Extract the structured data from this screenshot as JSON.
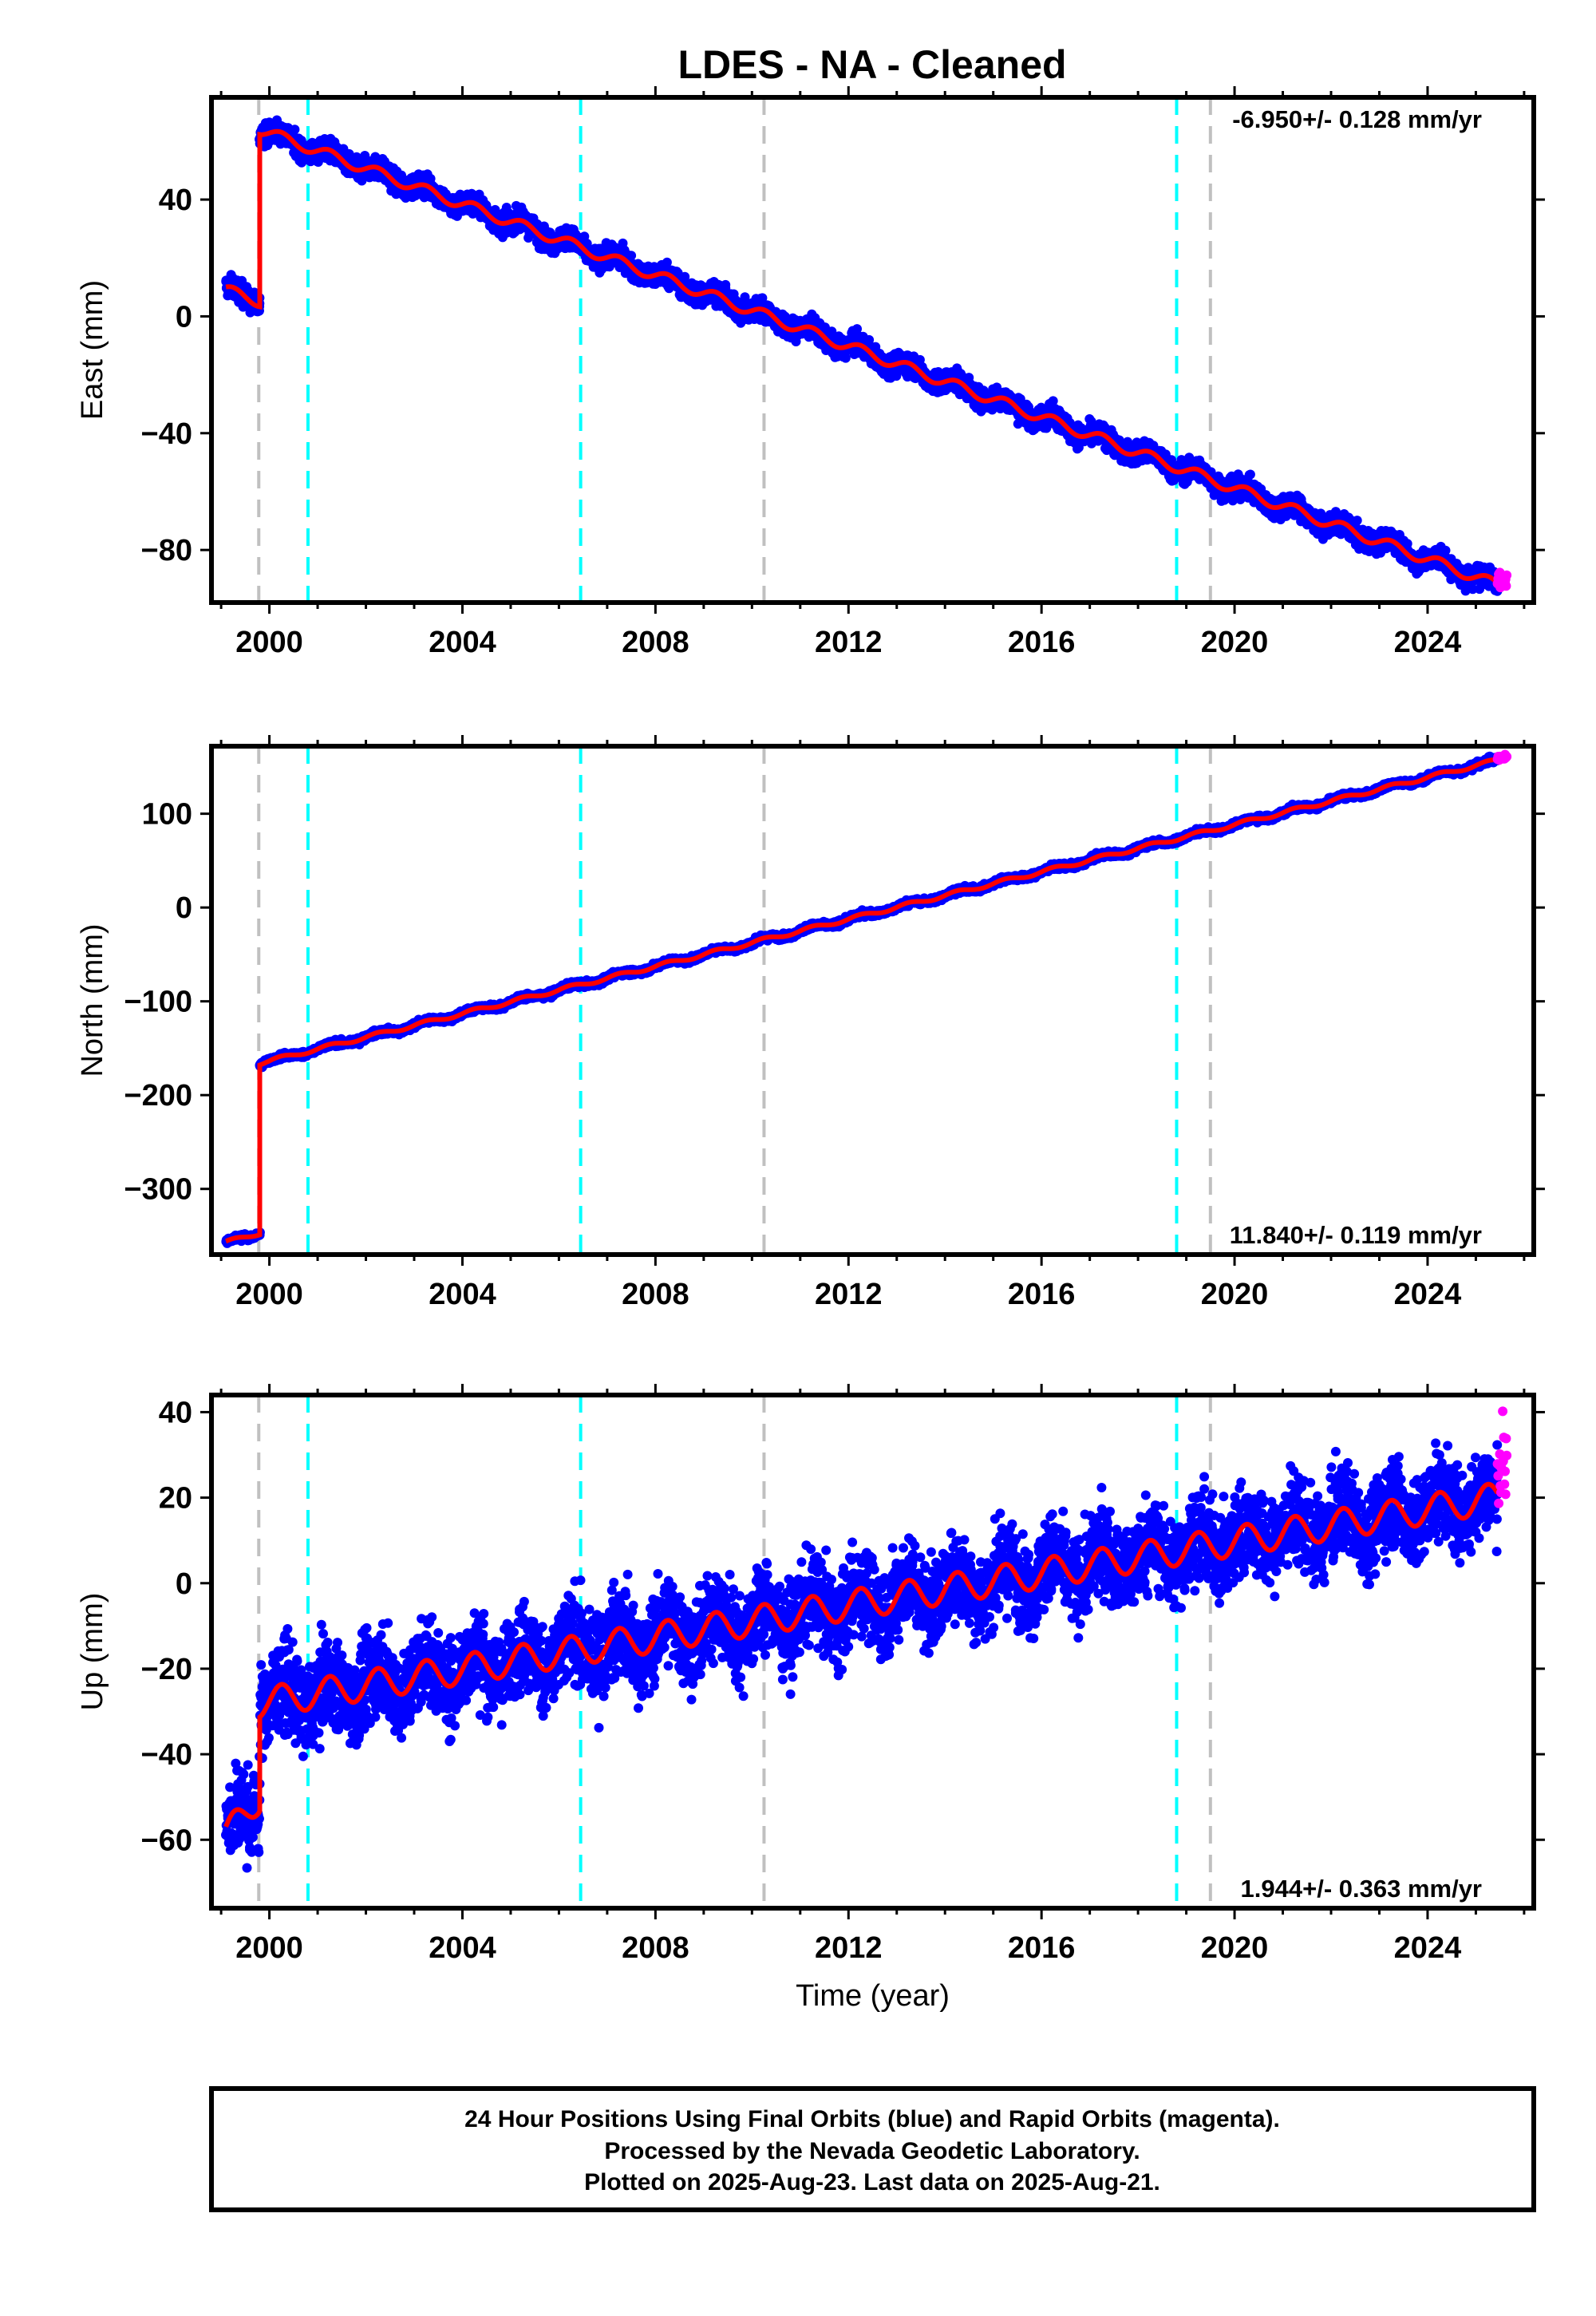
{
  "title": "LDES  - NA - Cleaned",
  "footer": {
    "line1": "24 Hour Positions Using Final Orbits (blue) and Rapid Orbits (magenta).",
    "line2": "Processed by the Nevada Geodetic Laboratory.",
    "line3": "Plotted on 2025-Aug-23. Last data on 2025-Aug-21."
  },
  "colors": {
    "final_orbits": "#0000ff",
    "rapid_orbits": "#ff00ff",
    "model_fit": "#ff0000",
    "equipment_change": "#00ffff",
    "earthquake": "#c0c0c0"
  },
  "chart_data": [
    {
      "type": "scatter",
      "component": "east",
      "ylabel": "East (mm)",
      "xlabel": "",
      "xlim": [
        1998.8,
        2026.2
      ],
      "ylim": [
        -98,
        75
      ],
      "x_ticks": [
        2000,
        2004,
        2008,
        2012,
        2016,
        2020,
        2024
      ],
      "y_ticks": [
        -80,
        -40,
        0,
        40
      ],
      "rate": "-6.950+/- 0.128 mm/yr",
      "rate_position": "top-right",
      "velocity_mm_per_yr": -6.95,
      "annual_amplitude_mm": 1.8,
      "scatter_mm": 1.8,
      "segments": [
        {
          "start": 1999.1,
          "end": 1999.8,
          "value_at_start": 9,
          "value_at_end": 5
        },
        {
          "start": 1999.8,
          "end": 2025.45,
          "value_at_start": 64,
          "value_at_end": -92
        }
      ],
      "step": {
        "year": 1999.8,
        "from": 5,
        "to": 64
      },
      "rapid_orbits": {
        "start": 2025.45,
        "end": 2025.64,
        "value": -90
      }
    },
    {
      "type": "scatter",
      "component": "north",
      "ylabel": "North (mm)",
      "xlabel": "",
      "xlim": [
        1998.8,
        2026.2
      ],
      "ylim": [
        -370,
        172
      ],
      "x_ticks": [
        2000,
        2004,
        2008,
        2012,
        2016,
        2020,
        2024
      ],
      "y_ticks": [
        -300,
        -200,
        -100,
        0,
        100
      ],
      "rate": "11.840+/- 0.119 mm/yr",
      "rate_position": "bottom-right",
      "velocity_mm_per_yr": 11.84,
      "annual_amplitude_mm": 2.0,
      "scatter_mm": 1.5,
      "segments": [
        {
          "start": 1999.1,
          "end": 1999.8,
          "value_at_start": -357,
          "value_at_end": -347
        },
        {
          "start": 1999.8,
          "end": 2025.45,
          "value_at_start": -166,
          "value_at_end": 157
        }
      ],
      "step": {
        "year": 1999.8,
        "from": -347,
        "to": -166
      },
      "rapid_orbits": {
        "start": 2025.45,
        "end": 2025.64,
        "value": 160
      }
    },
    {
      "type": "scatter",
      "component": "up",
      "ylabel": "Up (mm)",
      "xlabel": "Time (year)",
      "xlim": [
        1998.8,
        2026.2
      ],
      "ylim": [
        -76,
        44
      ],
      "x_ticks": [
        2000,
        2004,
        2008,
        2012,
        2016,
        2020,
        2024
      ],
      "y_ticks": [
        -60,
        -40,
        -20,
        0,
        20,
        40
      ],
      "rate": "1.944+/- 0.363 mm/yr",
      "rate_position": "bottom-right",
      "velocity_mm_per_yr": 1.944,
      "annual_amplitude_mm": 3.5,
      "scatter_mm": 5,
      "segments": [
        {
          "start": 1999.1,
          "end": 1999.8,
          "value_at_start": -59,
          "value_at_end": -50
        },
        {
          "start": 1999.8,
          "end": 2025.45,
          "value_at_start": -28,
          "value_at_end": 20
        }
      ],
      "step": {
        "year": 1999.8,
        "from": -50,
        "to": -28
      },
      "rapid_orbits": {
        "start": 2025.45,
        "end": 2025.64,
        "value": 28
      }
    }
  ],
  "event_lines": {
    "equipment_change_years": [
      2000.8,
      2006.45,
      2018.8
    ],
    "earthquake_years": [
      1999.78,
      2010.25,
      2019.5
    ]
  }
}
